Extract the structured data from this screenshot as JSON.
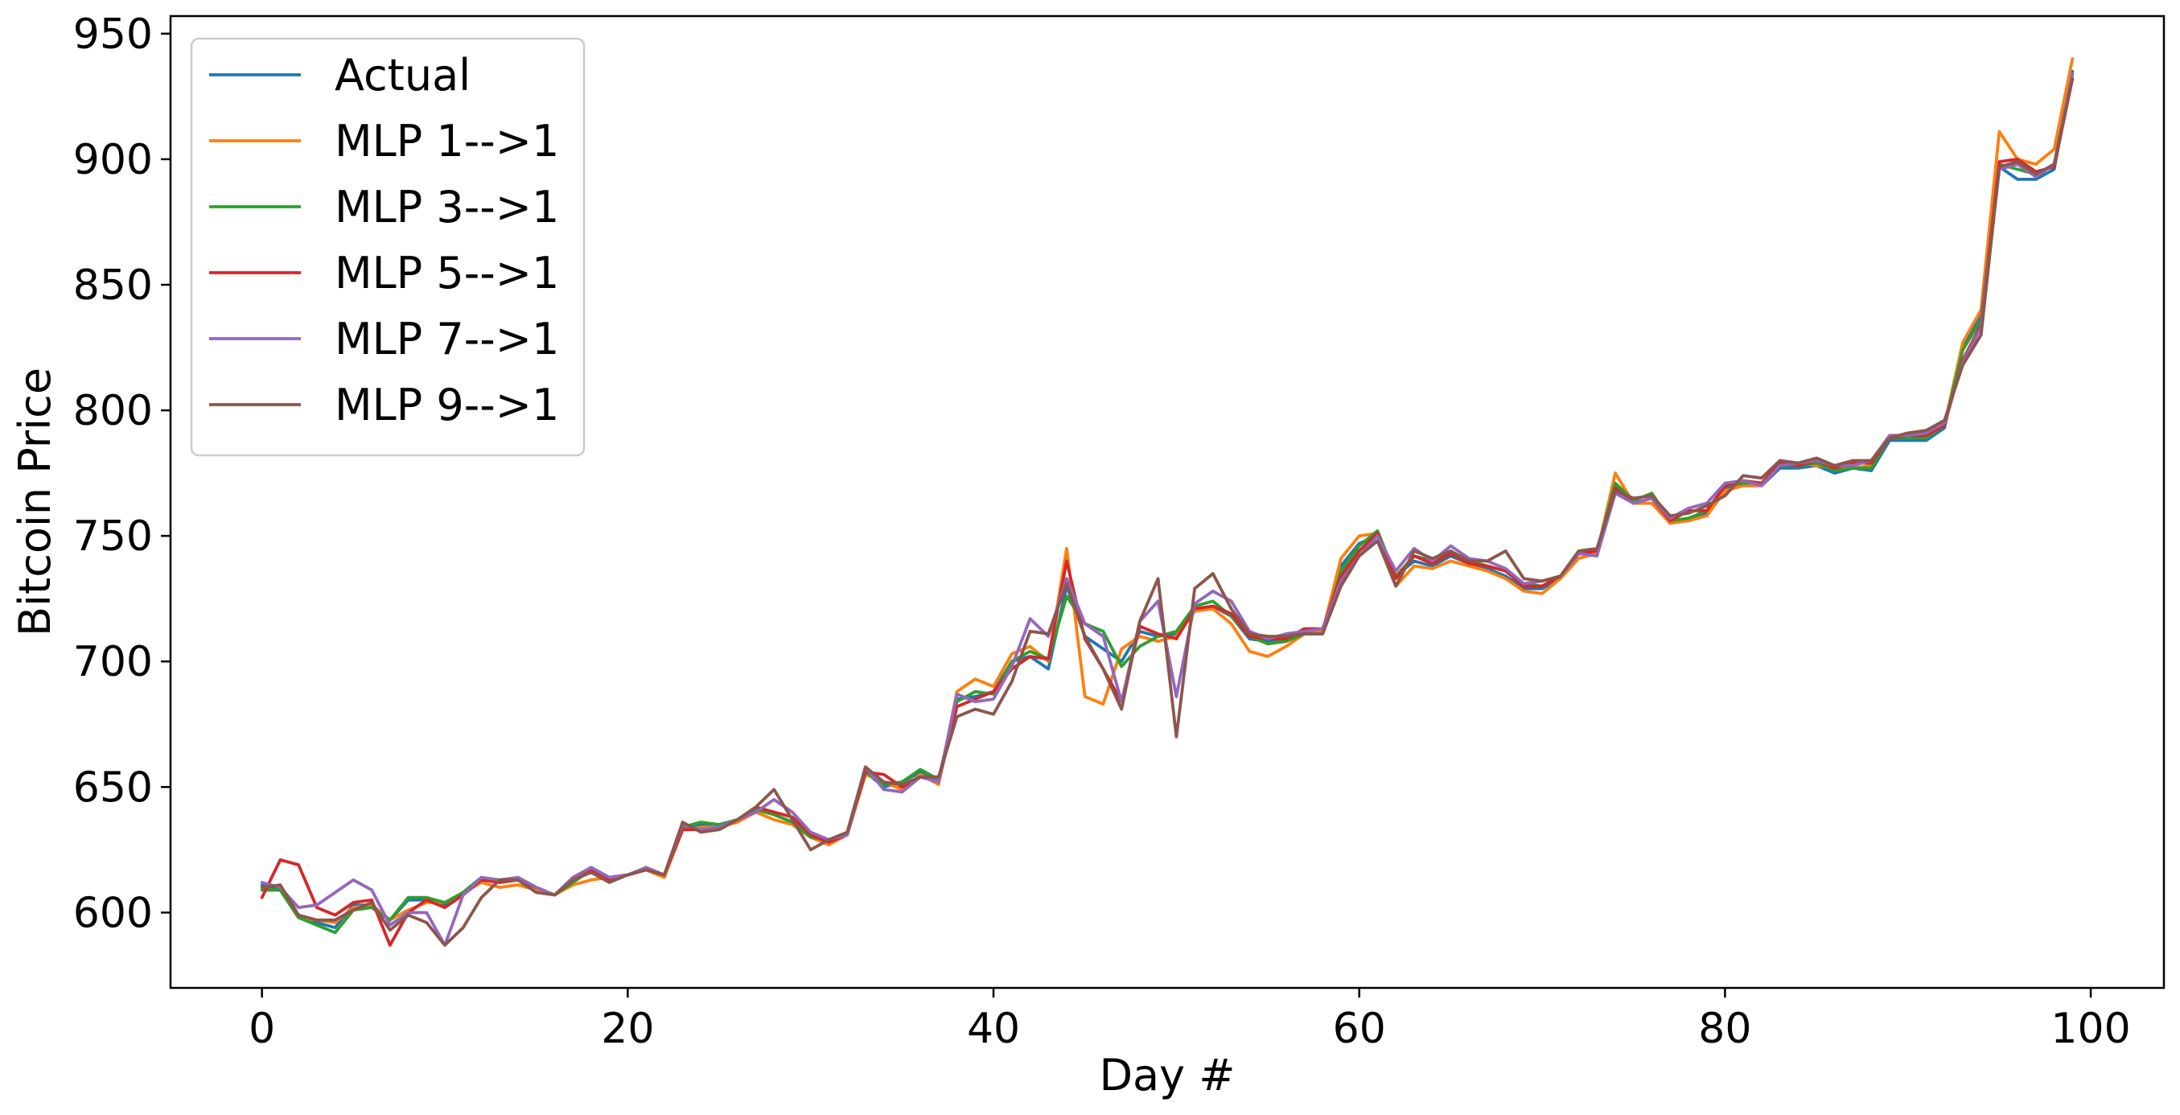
{
  "chart_data": {
    "type": "line",
    "xlabel": "Day #",
    "ylabel": "Bitcoin Price",
    "xlim": [
      -5,
      104
    ],
    "ylim": [
      570,
      957
    ],
    "xticks": [
      0,
      20,
      40,
      60,
      80,
      100
    ],
    "yticks": [
      600,
      650,
      700,
      750,
      800,
      850,
      900,
      950
    ],
    "legend_position": "top-left",
    "series": [
      {
        "name": "Actual",
        "color": "#1f77b4",
        "values": [
          611,
          609,
          598,
          596,
          594,
          603,
          603,
          597,
          605,
          605,
          603,
          608,
          614,
          612,
          613,
          610,
          607,
          612,
          617,
          614,
          615,
          617,
          615,
          634,
          635,
          635,
          637,
          641,
          639,
          636,
          630,
          628,
          631,
          656,
          650,
          652,
          656,
          653,
          685,
          686,
          688,
          700,
          702,
          697,
          730,
          710,
          705,
          700,
          712,
          710,
          711,
          720,
          722,
          718,
          709,
          708,
          709,
          711,
          711,
          738,
          747,
          750,
          734,
          740,
          738,
          742,
          739,
          737,
          734,
          729,
          729,
          733,
          743,
          743,
          770,
          763,
          765,
          755,
          757,
          759,
          769,
          770,
          770,
          777,
          777,
          778,
          775,
          777,
          776,
          788,
          788,
          788,
          793,
          826,
          838,
          897,
          892,
          892,
          896,
          935
        ]
      },
      {
        "name": "MLP 1-->1",
        "color": "#ff7f0e",
        "values": [
          609,
          609,
          598,
          597,
          596,
          602,
          603,
          597,
          601,
          604,
          604,
          608,
          612,
          610,
          611,
          609,
          607,
          611,
          613,
          614,
          615,
          617,
          614,
          633,
          634,
          634,
          636,
          640,
          637,
          635,
          630,
          627,
          631,
          655,
          652,
          649,
          655,
          651,
          688,
          693,
          690,
          703,
          706,
          700,
          745,
          686,
          683,
          705,
          710,
          708,
          710,
          720,
          721,
          715,
          704,
          702,
          706,
          711,
          712,
          741,
          750,
          751,
          730,
          738,
          737,
          740,
          738,
          736,
          733,
          728,
          727,
          733,
          741,
          743,
          775,
          763,
          763,
          755,
          756,
          758,
          768,
          770,
          770,
          778,
          779,
          778,
          777,
          777,
          778,
          790,
          790,
          790,
          794,
          827,
          840,
          911,
          900,
          898,
          904,
          940
        ]
      },
      {
        "name": "MLP 3-->1",
        "color": "#2ca02c",
        "values": [
          609,
          609,
          598,
          595,
          592,
          601,
          602,
          597,
          606,
          606,
          604,
          608,
          614,
          612,
          614,
          610,
          607,
          612,
          617,
          614,
          615,
          617,
          615,
          634,
          636,
          635,
          637,
          641,
          639,
          636,
          630,
          629,
          631,
          656,
          651,
          652,
          657,
          653,
          684,
          688,
          687,
          700,
          704,
          701,
          726,
          715,
          712,
          698,
          706,
          710,
          712,
          722,
          724,
          718,
          710,
          707,
          708,
          711,
          711,
          736,
          746,
          752,
          734,
          742,
          740,
          744,
          740,
          738,
          736,
          731,
          730,
          734,
          743,
          744,
          771,
          764,
          767,
          756,
          757,
          760,
          770,
          771,
          771,
          778,
          778,
          779,
          776,
          777,
          777,
          789,
          789,
          789,
          794,
          824,
          836,
          898,
          896,
          894,
          898,
          934
        ]
      },
      {
        "name": "MLP 5-->1",
        "color": "#d62728",
        "values": [
          606,
          621,
          619,
          602,
          599,
          604,
          605,
          587,
          600,
          605,
          602,
          607,
          613,
          612,
          613,
          610,
          607,
          613,
          617,
          613,
          615,
          617,
          615,
          633,
          633,
          634,
          637,
          642,
          640,
          638,
          631,
          628,
          631,
          656,
          655,
          650,
          654,
          652,
          682,
          685,
          688,
          697,
          702,
          701,
          740,
          709,
          697,
          684,
          714,
          711,
          709,
          721,
          722,
          719,
          710,
          709,
          709,
          713,
          713,
          734,
          744,
          751,
          733,
          742,
          739,
          743,
          739,
          738,
          736,
          730,
          730,
          734,
          743,
          744,
          769,
          763,
          765,
          756,
          760,
          760,
          770,
          772,
          771,
          779,
          778,
          780,
          777,
          779,
          779,
          789,
          790,
          790,
          794,
          820,
          834,
          899,
          900,
          895,
          897,
          932
        ]
      },
      {
        "name": "MLP 7-->1",
        "color": "#9467bd",
        "values": [
          612,
          610,
          602,
          603,
          608,
          613,
          609,
          595,
          600,
          600,
          587,
          607,
          614,
          613,
          614,
          610,
          607,
          614,
          618,
          614,
          615,
          618,
          615,
          635,
          633,
          634,
          637,
          640,
          645,
          640,
          632,
          629,
          631,
          658,
          649,
          648,
          654,
          652,
          687,
          684,
          685,
          698,
          717,
          710,
          733,
          715,
          710,
          684,
          716,
          724,
          686,
          723,
          728,
          724,
          712,
          709,
          711,
          712,
          713,
          732,
          742,
          750,
          736,
          745,
          740,
          746,
          741,
          740,
          737,
          731,
          732,
          734,
          743,
          742,
          767,
          763,
          765,
          757,
          761,
          763,
          771,
          772,
          770,
          778,
          779,
          780,
          778,
          778,
          780,
          790,
          790,
          791,
          795,
          819,
          833,
          896,
          898,
          893,
          898,
          934
        ]
      },
      {
        "name": "MLP 9-->1",
        "color": "#8c564b",
        "values": [
          610,
          611,
          599,
          597,
          597,
          601,
          604,
          593,
          599,
          596,
          587,
          594,
          606,
          613,
          613,
          608,
          607,
          613,
          616,
          612,
          615,
          617,
          615,
          636,
          632,
          633,
          637,
          642,
          649,
          637,
          625,
          629,
          632,
          658,
          652,
          651,
          654,
          654,
          678,
          681,
          679,
          692,
          712,
          711,
          731,
          710,
          697,
          681,
          716,
          733,
          670,
          729,
          735,
          721,
          711,
          710,
          710,
          711,
          711,
          730,
          742,
          748,
          730,
          744,
          741,
          744,
          740,
          740,
          744,
          733,
          732,
          734,
          744,
          745,
          768,
          765,
          766,
          758,
          759,
          762,
          766,
          774,
          773,
          780,
          779,
          781,
          778,
          780,
          780,
          789,
          791,
          792,
          796,
          818,
          830,
          897,
          899,
          894,
          898,
          932
        ]
      }
    ]
  }
}
